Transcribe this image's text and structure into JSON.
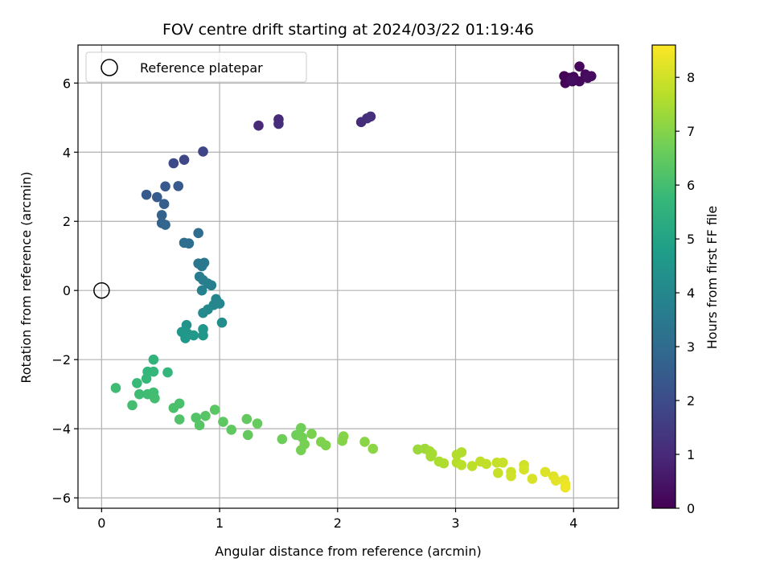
{
  "chart_data": {
    "type": "scatter",
    "title": "FOV centre drift starting at 2024/03/22 01:19:46",
    "xlabel": "Angular distance from reference (arcmin)",
    "ylabel": "Rotation from reference (arcmin)",
    "xlim": [
      -0.2,
      4.38
    ],
    "ylim": [
      -6.3,
      7.1
    ],
    "xticks": [
      0,
      1,
      2,
      3,
      4
    ],
    "yticks": [
      -6,
      -4,
      -2,
      0,
      2,
      4,
      6
    ],
    "grid": true,
    "legend": {
      "position": "top-left",
      "entries": [
        {
          "label": "Reference platepar",
          "marker": "open-circle"
        }
      ]
    },
    "reference_point": {
      "x": 0,
      "y": 0
    },
    "colorbar": {
      "label": "Hours from first FF file",
      "colormap": "viridis",
      "range": [
        0,
        8.6
      ],
      "ticks": [
        0,
        1,
        2,
        3,
        4,
        5,
        6,
        7,
        8
      ]
    },
    "points": [
      {
        "x": 3.92,
        "y": 6.2,
        "t": 0.05
      },
      {
        "x": 3.96,
        "y": 6.15,
        "t": 0.08
      },
      {
        "x": 3.99,
        "y": 6.05,
        "t": 0.1
      },
      {
        "x": 3.93,
        "y": 6.0,
        "t": 0.12
      },
      {
        "x": 4.0,
        "y": 6.18,
        "t": 0.15
      },
      {
        "x": 4.05,
        "y": 6.48,
        "t": 0.18
      },
      {
        "x": 4.05,
        "y": 6.05,
        "t": 0.2
      },
      {
        "x": 4.1,
        "y": 6.25,
        "t": 0.22
      },
      {
        "x": 4.15,
        "y": 6.2,
        "t": 0.25
      },
      {
        "x": 4.12,
        "y": 6.15,
        "t": 0.28
      },
      {
        "x": 3.98,
        "y": 6.08,
        "t": 0.3
      },
      {
        "x": 1.33,
        "y": 4.77,
        "t": 1.0
      },
      {
        "x": 1.5,
        "y": 4.95,
        "t": 1.05
      },
      {
        "x": 1.5,
        "y": 4.82,
        "t": 1.1
      },
      {
        "x": 2.2,
        "y": 4.87,
        "t": 1.1
      },
      {
        "x": 2.25,
        "y": 4.98,
        "t": 1.12
      },
      {
        "x": 2.28,
        "y": 5.03,
        "t": 1.15
      },
      {
        "x": 0.86,
        "y": 4.02,
        "t": 1.8
      },
      {
        "x": 0.7,
        "y": 3.78,
        "t": 1.85
      },
      {
        "x": 0.61,
        "y": 3.68,
        "t": 1.9
      },
      {
        "x": 0.38,
        "y": 2.77,
        "t": 2.4
      },
      {
        "x": 0.47,
        "y": 2.7,
        "t": 2.45
      },
      {
        "x": 0.54,
        "y": 3.01,
        "t": 2.4
      },
      {
        "x": 0.65,
        "y": 3.02,
        "t": 2.4
      },
      {
        "x": 0.53,
        "y": 2.5,
        "t": 2.6
      },
      {
        "x": 0.51,
        "y": 2.18,
        "t": 2.7
      },
      {
        "x": 0.51,
        "y": 1.95,
        "t": 2.75
      },
      {
        "x": 0.54,
        "y": 1.9,
        "t": 2.8
      },
      {
        "x": 0.7,
        "y": 1.38,
        "t": 3.1
      },
      {
        "x": 0.74,
        "y": 1.36,
        "t": 3.1
      },
      {
        "x": 0.82,
        "y": 1.66,
        "t": 3.0
      },
      {
        "x": 0.82,
        "y": 0.78,
        "t": 3.4
      },
      {
        "x": 0.85,
        "y": 0.7,
        "t": 3.45
      },
      {
        "x": 0.87,
        "y": 0.8,
        "t": 3.45
      },
      {
        "x": 0.83,
        "y": 0.4,
        "t": 3.6
      },
      {
        "x": 0.86,
        "y": 0.3,
        "t": 3.65
      },
      {
        "x": 0.9,
        "y": 0.2,
        "t": 3.7
      },
      {
        "x": 0.93,
        "y": 0.15,
        "t": 3.7
      },
      {
        "x": 0.85,
        "y": 0.0,
        "t": 3.8
      },
      {
        "x": 0.97,
        "y": -0.25,
        "t": 3.9
      },
      {
        "x": 1.0,
        "y": -0.38,
        "t": 3.95
      },
      {
        "x": 0.95,
        "y": -0.42,
        "t": 3.95
      },
      {
        "x": 0.9,
        "y": -0.55,
        "t": 4.05
      },
      {
        "x": 0.86,
        "y": -0.65,
        "t": 4.1
      },
      {
        "x": 1.02,
        "y": -0.93,
        "t": 4.2
      },
      {
        "x": 0.72,
        "y": -1.0,
        "t": 4.4
      },
      {
        "x": 0.68,
        "y": -1.2,
        "t": 4.5
      },
      {
        "x": 0.73,
        "y": -1.25,
        "t": 4.55
      },
      {
        "x": 0.78,
        "y": -1.3,
        "t": 4.6
      },
      {
        "x": 0.86,
        "y": -1.12,
        "t": 4.5
      },
      {
        "x": 0.86,
        "y": -1.3,
        "t": 4.55
      },
      {
        "x": 0.71,
        "y": -1.38,
        "t": 4.6
      },
      {
        "x": 0.44,
        "y": -2.0,
        "t": 5.6
      },
      {
        "x": 0.39,
        "y": -2.35,
        "t": 5.7
      },
      {
        "x": 0.44,
        "y": -2.35,
        "t": 5.7
      },
      {
        "x": 0.38,
        "y": -2.55,
        "t": 5.75
      },
      {
        "x": 0.3,
        "y": -2.68,
        "t": 5.8
      },
      {
        "x": 0.56,
        "y": -2.37,
        "t": 5.7
      },
      {
        "x": 0.12,
        "y": -2.82,
        "t": 5.9
      },
      {
        "x": 0.32,
        "y": -3.0,
        "t": 5.9
      },
      {
        "x": 0.39,
        "y": -3.0,
        "t": 5.9
      },
      {
        "x": 0.44,
        "y": -2.95,
        "t": 5.95
      },
      {
        "x": 0.45,
        "y": -3.12,
        "t": 6.0
      },
      {
        "x": 0.26,
        "y": -3.32,
        "t": 6.0
      },
      {
        "x": 0.61,
        "y": -3.4,
        "t": 6.1
      },
      {
        "x": 0.66,
        "y": -3.27,
        "t": 6.1
      },
      {
        "x": 0.66,
        "y": -3.73,
        "t": 6.2
      },
      {
        "x": 0.8,
        "y": -3.68,
        "t": 6.25
      },
      {
        "x": 0.83,
        "y": -3.9,
        "t": 6.3
      },
      {
        "x": 0.88,
        "y": -3.63,
        "t": 6.3
      },
      {
        "x": 0.96,
        "y": -3.45,
        "t": 6.35
      },
      {
        "x": 1.03,
        "y": -3.8,
        "t": 6.4
      },
      {
        "x": 1.1,
        "y": -4.03,
        "t": 6.45
      },
      {
        "x": 1.23,
        "y": -3.72,
        "t": 6.5
      },
      {
        "x": 1.32,
        "y": -3.85,
        "t": 6.55
      },
      {
        "x": 1.24,
        "y": -4.18,
        "t": 6.5
      },
      {
        "x": 1.53,
        "y": -4.3,
        "t": 6.65
      },
      {
        "x": 1.65,
        "y": -4.18,
        "t": 6.7
      },
      {
        "x": 1.69,
        "y": -3.98,
        "t": 6.7
      },
      {
        "x": 1.7,
        "y": -4.25,
        "t": 6.75
      },
      {
        "x": 1.72,
        "y": -4.45,
        "t": 6.8
      },
      {
        "x": 1.69,
        "y": -4.62,
        "t": 6.8
      },
      {
        "x": 1.78,
        "y": -4.15,
        "t": 6.85
      },
      {
        "x": 1.86,
        "y": -4.38,
        "t": 6.9
      },
      {
        "x": 1.9,
        "y": -4.48,
        "t": 6.9
      },
      {
        "x": 2.05,
        "y": -4.22,
        "t": 7.0
      },
      {
        "x": 2.04,
        "y": -4.35,
        "t": 7.0
      },
      {
        "x": 2.23,
        "y": -4.38,
        "t": 7.05
      },
      {
        "x": 2.3,
        "y": -4.58,
        "t": 7.1
      },
      {
        "x": 2.68,
        "y": -4.6,
        "t": 7.3
      },
      {
        "x": 2.74,
        "y": -4.58,
        "t": 7.35
      },
      {
        "x": 2.78,
        "y": -4.65,
        "t": 7.4
      },
      {
        "x": 2.8,
        "y": -4.72,
        "t": 7.45
      },
      {
        "x": 2.79,
        "y": -4.8,
        "t": 7.45
      },
      {
        "x": 2.86,
        "y": -4.95,
        "t": 7.5
      },
      {
        "x": 2.9,
        "y": -5.0,
        "t": 7.55
      },
      {
        "x": 3.01,
        "y": -4.75,
        "t": 7.6
      },
      {
        "x": 3.05,
        "y": -4.68,
        "t": 7.6
      },
      {
        "x": 3.01,
        "y": -4.98,
        "t": 7.65
      },
      {
        "x": 3.05,
        "y": -5.05,
        "t": 7.7
      },
      {
        "x": 3.14,
        "y": -5.08,
        "t": 7.75
      },
      {
        "x": 3.21,
        "y": -4.95,
        "t": 7.8
      },
      {
        "x": 3.26,
        "y": -5.02,
        "t": 7.8
      },
      {
        "x": 3.35,
        "y": -4.98,
        "t": 7.85
      },
      {
        "x": 3.4,
        "y": -4.98,
        "t": 7.9
      },
      {
        "x": 3.36,
        "y": -5.28,
        "t": 7.9
      },
      {
        "x": 3.47,
        "y": -5.25,
        "t": 7.95
      },
      {
        "x": 3.47,
        "y": -5.37,
        "t": 8.0
      },
      {
        "x": 3.58,
        "y": -5.05,
        "t": 8.0
      },
      {
        "x": 3.58,
        "y": -5.18,
        "t": 8.05
      },
      {
        "x": 3.65,
        "y": -5.45,
        "t": 8.1
      },
      {
        "x": 3.76,
        "y": -5.25,
        "t": 8.15
      },
      {
        "x": 3.83,
        "y": -5.38,
        "t": 8.2
      },
      {
        "x": 3.85,
        "y": -5.5,
        "t": 8.25
      },
      {
        "x": 3.92,
        "y": -5.48,
        "t": 8.3
      },
      {
        "x": 3.93,
        "y": -5.6,
        "t": 8.35
      },
      {
        "x": 3.93,
        "y": -5.7,
        "t": 8.4
      }
    ]
  }
}
